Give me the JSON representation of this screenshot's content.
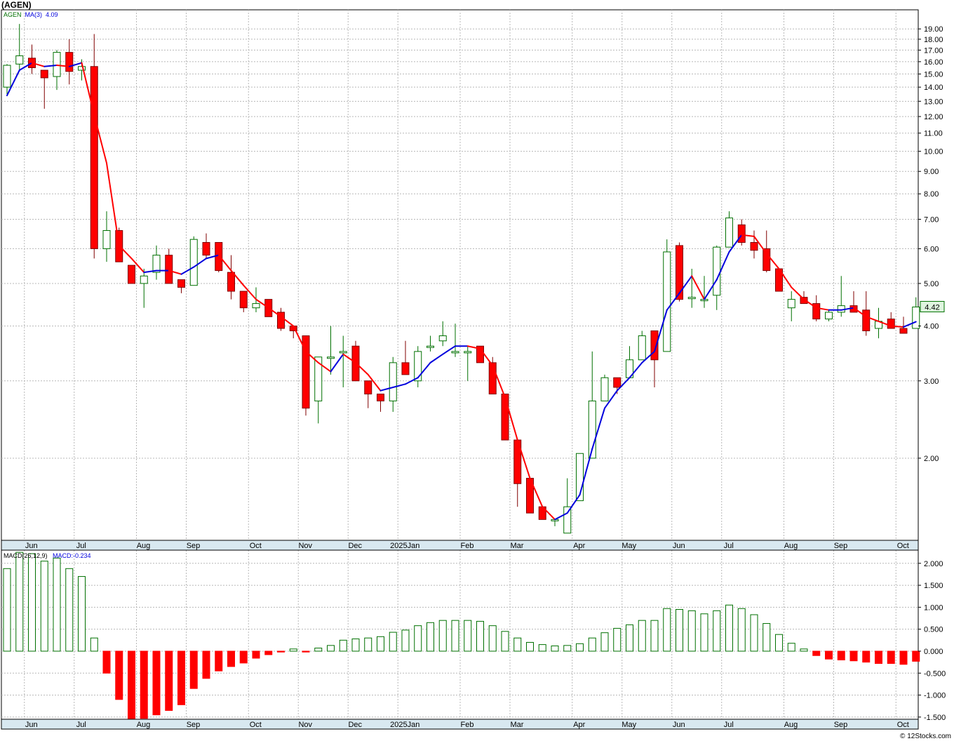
{
  "header": {
    "ticker_title": "(AGEN)"
  },
  "legend_price": {
    "symbol": "AGEN",
    "ma_label": "MA(3)",
    "ma_value": "4.09"
  },
  "legend_macd": {
    "label": "MACD(26,12,9)",
    "value_label": "MACD:-0.234"
  },
  "last_price_label": "4.42",
  "footer": {
    "copyright": "© 12Stocks.com"
  },
  "colors": {
    "up": "#007000",
    "down": "#ff0000",
    "ma_up": "#0000dd",
    "ma_down": "#ff0000",
    "grid": "#b8b8b8",
    "axis_band": "#d8e8f0"
  },
  "chart_data": [
    {
      "type": "candlestick",
      "scale": "log",
      "ylim": [
        1.3,
        21
      ],
      "yticks": [
        19,
        18,
        17,
        16,
        15,
        14,
        13,
        12,
        11,
        10,
        9,
        8,
        7,
        6,
        5,
        4,
        3,
        2
      ],
      "ytick_labels": [
        "19.00",
        "18.00",
        "17.00",
        "16.00",
        "15.00",
        "14.00",
        "13.00",
        "12.00",
        "11.00",
        "10.00",
        "9.00",
        "8.00",
        "7.00",
        "6.00",
        "5.00",
        "4.00",
        "3.00",
        "2.00"
      ],
      "month_labels": [
        "Jun",
        "Jul",
        "Aug",
        "Sep",
        "Oct",
        "Nov",
        "Dec",
        "2025Jan",
        "Feb",
        "Mar",
        "Apr",
        "May",
        "Jun",
        "Jul",
        "Aug",
        "Sep",
        "Oct"
      ],
      "month_start_index": [
        1,
        5,
        10,
        14,
        19,
        23,
        27,
        31,
        36,
        40,
        45,
        49,
        53,
        57,
        62,
        66,
        71
      ],
      "ohlc": [
        [
          14.0,
          15.8,
          13.5,
          15.7
        ],
        [
          15.8,
          19.5,
          15.2,
          16.5
        ],
        [
          16.3,
          17.5,
          15.0,
          15.5
        ],
        [
          15.3,
          15.3,
          12.5,
          14.7
        ],
        [
          14.8,
          17.0,
          13.8,
          16.8
        ],
        [
          16.8,
          18.0,
          14.2,
          15.2
        ],
        [
          15.3,
          16.2,
          14.5,
          15.6
        ],
        [
          15.6,
          18.5,
          5.7,
          6.0
        ],
        [
          6.0,
          7.3,
          5.6,
          6.6
        ],
        [
          6.6,
          6.7,
          5.6,
          5.6
        ],
        [
          5.5,
          5.5,
          5.0,
          5.0
        ],
        [
          5.0,
          5.4,
          4.4,
          5.2
        ],
        [
          5.3,
          6.1,
          5.1,
          5.8
        ],
        [
          5.8,
          6.0,
          5.0,
          5.0
        ],
        [
          5.1,
          5.1,
          4.75,
          4.9
        ],
        [
          4.95,
          6.4,
          4.95,
          6.3
        ],
        [
          6.2,
          6.5,
          5.7,
          5.8
        ],
        [
          6.2,
          6.2,
          5.3,
          5.35
        ],
        [
          5.3,
          5.8,
          4.6,
          4.8
        ],
        [
          4.8,
          4.8,
          4.3,
          4.4
        ],
        [
          4.4,
          4.9,
          4.3,
          4.5
        ],
        [
          4.6,
          4.6,
          4.2,
          4.2
        ],
        [
          4.3,
          4.4,
          3.9,
          3.95
        ],
        [
          4.0,
          4.0,
          3.75,
          3.9
        ],
        [
          3.8,
          3.8,
          2.5,
          2.6
        ],
        [
          2.7,
          3.4,
          2.4,
          3.4
        ],
        [
          3.4,
          4.0,
          3.1,
          3.4
        ],
        [
          3.5,
          3.8,
          2.9,
          3.5
        ],
        [
          3.6,
          3.7,
          3.0,
          3.0
        ],
        [
          3.0,
          3.0,
          2.6,
          2.8
        ],
        [
          2.8,
          2.8,
          2.55,
          2.7
        ],
        [
          2.7,
          3.4,
          2.55,
          3.3
        ],
        [
          3.3,
          3.7,
          3.1,
          3.1
        ],
        [
          3.0,
          3.6,
          2.9,
          3.5
        ],
        [
          3.6,
          3.8,
          3.5,
          3.6
        ],
        [
          3.7,
          4.1,
          3.6,
          3.8
        ],
        [
          3.5,
          4.05,
          3.4,
          3.5
        ],
        [
          3.5,
          3.6,
          3.0,
          3.5
        ],
        [
          3.6,
          3.6,
          3.3,
          3.3
        ],
        [
          3.3,
          3.4,
          2.8,
          2.8
        ],
        [
          2.8,
          2.8,
          2.2,
          2.2
        ],
        [
          2.2,
          2.2,
          1.55,
          1.75
        ],
        [
          1.8,
          1.8,
          1.5,
          1.5
        ],
        [
          1.55,
          1.55,
          1.45,
          1.45
        ],
        [
          1.45,
          1.45,
          1.4,
          1.45
        ],
        [
          1.35,
          1.8,
          1.35,
          1.55
        ],
        [
          1.6,
          2.05,
          1.6,
          2.05
        ],
        [
          2.0,
          3.5,
          2.0,
          2.7
        ],
        [
          2.7,
          3.1,
          2.7,
          3.05
        ],
        [
          3.05,
          3.05,
          2.8,
          2.9
        ],
        [
          3.05,
          3.6,
          3.05,
          3.35
        ],
        [
          3.35,
          3.9,
          3.35,
          3.8
        ],
        [
          3.9,
          3.9,
          2.9,
          3.35
        ],
        [
          3.5,
          6.3,
          3.5,
          5.9
        ],
        [
          6.1,
          6.2,
          4.55,
          4.6
        ],
        [
          4.65,
          5.4,
          4.4,
          4.65
        ],
        [
          4.6,
          5.2,
          4.4,
          4.6
        ],
        [
          4.7,
          6.1,
          4.35,
          6.05
        ],
        [
          6.05,
          7.3,
          6.05,
          7.05
        ],
        [
          6.8,
          7.0,
          6.1,
          6.2
        ],
        [
          6.2,
          6.6,
          5.7,
          5.95
        ],
        [
          6.0,
          6.6,
          5.3,
          5.35
        ],
        [
          5.4,
          5.4,
          4.8,
          4.8
        ],
        [
          4.4,
          4.8,
          4.1,
          4.6
        ],
        [
          4.65,
          4.8,
          4.5,
          4.5
        ],
        [
          4.5,
          4.7,
          4.1,
          4.15
        ],
        [
          4.15,
          4.35,
          4.1,
          4.3
        ],
        [
          4.3,
          5.2,
          4.2,
          4.45
        ],
        [
          4.45,
          4.8,
          4.3,
          4.3
        ],
        [
          4.35,
          4.8,
          3.8,
          3.9
        ],
        [
          3.95,
          4.4,
          3.75,
          4.1
        ],
        [
          4.15,
          4.3,
          4.0,
          3.95
        ],
        [
          3.95,
          4.2,
          3.85,
          3.85
        ],
        [
          3.95,
          4.65,
          3.95,
          4.42
        ]
      ],
      "ma3": [
        13.4,
        15.3,
        15.9,
        15.6,
        15.7,
        15.6,
        15.9,
        12.1,
        9.4,
        6.1,
        5.7,
        5.3,
        5.35,
        5.35,
        5.25,
        5.45,
        5.7,
        5.8,
        5.35,
        4.95,
        4.6,
        4.4,
        4.2,
        4.0,
        3.5,
        3.3,
        3.15,
        3.45,
        3.3,
        3.1,
        2.85,
        2.9,
        2.95,
        3.05,
        3.3,
        3.45,
        3.6,
        3.6,
        3.55,
        3.25,
        2.75,
        2.2,
        1.8,
        1.55,
        1.45,
        1.5,
        1.65,
        2.1,
        2.6,
        2.85,
        3.05,
        3.3,
        3.5,
        4.35,
        4.75,
        5.2,
        4.6,
        5.1,
        5.9,
        6.45,
        6.4,
        5.85,
        5.4,
        4.9,
        4.6,
        4.4,
        4.35,
        4.35,
        4.4,
        4.2,
        4.1,
        4.0,
        3.98,
        4.09
      ]
    },
    {
      "type": "bar",
      "title": "MACD(26,12,9)",
      "ylim": [
        -1.55,
        2.3
      ],
      "yticks": [
        2.0,
        1.5,
        1.0,
        0.5,
        0.0,
        -0.5,
        -1.0,
        -1.5
      ],
      "ytick_labels": [
        "2.000",
        "1.500",
        "1.000",
        "0.500",
        "0.000",
        "-0.500",
        "-1.000",
        "-1.500"
      ],
      "values": [
        1.88,
        2.25,
        2.22,
        2.05,
        2.12,
        1.88,
        1.7,
        0.3,
        -0.5,
        -1.1,
        -1.55,
        -1.53,
        -1.45,
        -1.35,
        -1.22,
        -0.85,
        -0.62,
        -0.45,
        -0.35,
        -0.27,
        -0.16,
        -0.08,
        -0.02,
        0.05,
        -0.02,
        0.07,
        0.13,
        0.25,
        0.28,
        0.3,
        0.33,
        0.43,
        0.48,
        0.58,
        0.65,
        0.7,
        0.7,
        0.7,
        0.68,
        0.58,
        0.45,
        0.3,
        0.2,
        0.15,
        0.12,
        0.13,
        0.17,
        0.3,
        0.42,
        0.52,
        0.6,
        0.7,
        0.7,
        0.97,
        0.95,
        0.92,
        0.85,
        0.92,
        1.05,
        0.97,
        0.83,
        0.63,
        0.38,
        0.18,
        0.05,
        -0.1,
        -0.18,
        -0.2,
        -0.22,
        -0.25,
        -0.28,
        -0.28,
        -0.3,
        -0.23
      ]
    }
  ]
}
